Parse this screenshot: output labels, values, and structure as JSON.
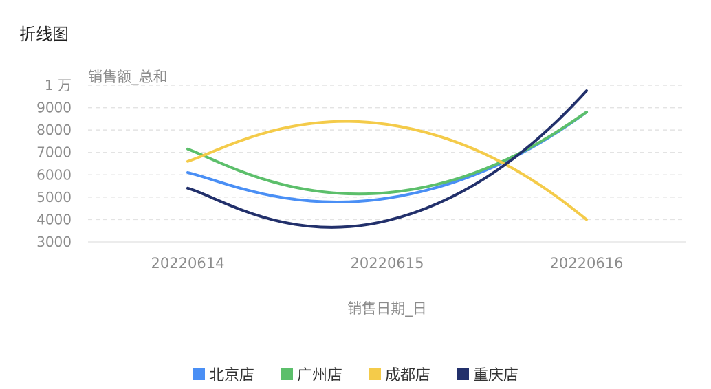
{
  "title": "折线图",
  "chart_data": {
    "type": "line",
    "smooth": true,
    "ylabel": "销售额_总和",
    "xlabel": "销售日期_日",
    "categories": [
      "20220614",
      "20220615",
      "20220616"
    ],
    "ylim": [
      3000,
      10000
    ],
    "yticks": [
      {
        "value": 3000,
        "label": "3000"
      },
      {
        "value": 4000,
        "label": "4000"
      },
      {
        "value": 5000,
        "label": "5000"
      },
      {
        "value": 6000,
        "label": "6000"
      },
      {
        "value": 7000,
        "label": "7000"
      },
      {
        "value": 8000,
        "label": "8000"
      },
      {
        "value": 9000,
        "label": "9000"
      },
      {
        "value": 10000,
        "label": "1 万"
      }
    ],
    "grid": "horizontal-dashed",
    "legend_position": "bottom",
    "series": [
      {
        "name": "北京店",
        "color": "#4a8ff5",
        "values": [
          6100,
          4950,
          8800
        ]
      },
      {
        "name": "广州店",
        "color": "#5cbf6b",
        "values": [
          7150,
          5200,
          8800
        ]
      },
      {
        "name": "成都店",
        "color": "#f4cb4a",
        "values": [
          6600,
          8250,
          4000
        ]
      },
      {
        "name": "重庆店",
        "color": "#22306b",
        "values": [
          5400,
          3950,
          9750
        ]
      }
    ]
  }
}
